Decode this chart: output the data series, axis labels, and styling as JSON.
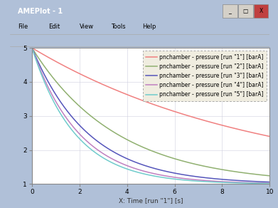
{
  "title": "AMEPlot - 1",
  "xlabel": "X: Time [run \"1\"] [s]",
  "xlim": [
    0,
    10
  ],
  "ylim": [
    1.0,
    5.0
  ],
  "yticks": [
    1.0,
    2.0,
    3.0,
    4.0,
    5.0
  ],
  "xticks": [
    0,
    2,
    4,
    6,
    8,
    10
  ],
  "series": [
    {
      "label": "pnchamber - pressure [run \"1\"] [barA]",
      "color": "#f08080",
      "decay": 0.105
    },
    {
      "label": "pnchamber - pressure [run \"2\"] [barA]",
      "color": "#90b070",
      "decay": 0.28
    },
    {
      "label": "pnchamber - pressure [run \"3\"] [barA]",
      "color": "#5555bb",
      "decay": 0.42
    },
    {
      "label": "pnchamber - pressure [run \"4\"] [barA]",
      "color": "#c080c0",
      "decay": 0.5
    },
    {
      "label": "pnchamber - pressure [run \"5\"] [barA]",
      "color": "#70cccc",
      "decay": 0.55
    }
  ],
  "outer_bg": "#b0c0d8",
  "window_bg": "#ece9d8",
  "titlebar_color": "#0a3bb5",
  "titlebar_text": "AMEPlot - 1",
  "plot_bg": "#ffffff",
  "grid_color": "#d0d0e0",
  "legend_bg": "#f0ede0",
  "legend_border": "#aaaaaa",
  "fig_width": 3.91,
  "fig_height": 2.92,
  "dpi": 100
}
